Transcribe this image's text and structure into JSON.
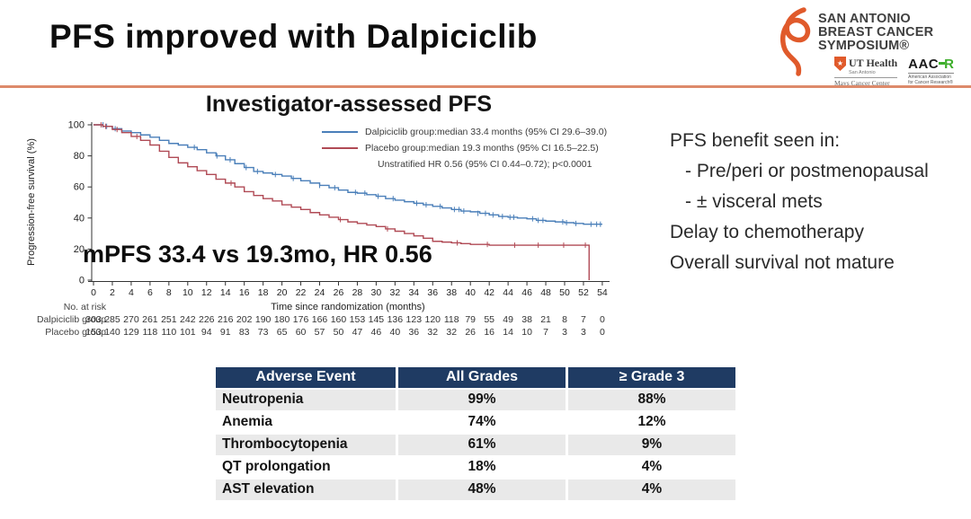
{
  "slide": {
    "title": "PFS improved with Dalpiciclib"
  },
  "logo": {
    "line1": "SAN ANTONIO",
    "line2": "BREAST CANCER",
    "line3": "SYMPOSIUM®",
    "ut_main": "UT Health",
    "ut_sub": "San Antonio",
    "ut_cancer": "Mays Cancer Center",
    "aacr_black": "AAC",
    "aacr_green": "R",
    "aacr_sub1": "American Association",
    "aacr_sub2": "for Cancer Research®",
    "star_icon": "★"
  },
  "right_panel": {
    "lines": [
      "PFS benefit seen in:",
      "- Pre/peri or postmenopausal",
      "- ± visceral mets",
      "Delay to chemotherapy",
      "Overall survival not mature"
    ]
  },
  "chart_data": {
    "type": "line",
    "subtype": "kaplan-meier",
    "title": "Investigator-assessed PFS",
    "xlabel": "Time since randomization (months)",
    "ylabel": "Progression-free survival (%)",
    "xlim": [
      0,
      54
    ],
    "ylim": [
      0,
      100
    ],
    "xticks": [
      0,
      2,
      4,
      6,
      8,
      10,
      12,
      14,
      16,
      18,
      20,
      22,
      24,
      26,
      28,
      30,
      32,
      34,
      36,
      38,
      40,
      42,
      44,
      46,
      48,
      50,
      52,
      54
    ],
    "yticks": [
      0,
      20,
      40,
      60,
      80,
      100
    ],
    "grid": false,
    "legend_position": "top-right-inside",
    "annotation": "mPFS 33.4 vs 19.3mo, HR 0.56",
    "note": "Unstratified HR 0.56 (95% CI 0.44–0.72); p<0.0001",
    "legend": [
      {
        "label": "Dalpiciclib group:median 33.4 months (95% CI 29.6–39.0)",
        "color": "#4a7fb9"
      },
      {
        "label": "Placebo group:median 19.3 months (95% CI 16.5–22.5)",
        "color": "#b04a55"
      }
    ],
    "series": [
      {
        "name": "Dalpiciclib group",
        "color": "#4a7fb9",
        "points": [
          [
            0,
            100
          ],
          [
            1,
            99
          ],
          [
            2,
            97.5
          ],
          [
            3,
            96
          ],
          [
            4,
            95
          ],
          [
            5,
            93.5
          ],
          [
            6,
            92
          ],
          [
            7,
            90
          ],
          [
            8,
            88
          ],
          [
            9,
            87
          ],
          [
            10,
            85.5
          ],
          [
            11,
            84
          ],
          [
            12,
            82
          ],
          [
            13,
            80
          ],
          [
            14,
            77.5
          ],
          [
            15,
            75
          ],
          [
            16,
            72.5
          ],
          [
            17,
            70
          ],
          [
            18,
            69
          ],
          [
            19,
            68
          ],
          [
            20,
            67
          ],
          [
            21,
            65.5
          ],
          [
            22,
            64
          ],
          [
            23,
            62.5
          ],
          [
            24,
            61
          ],
          [
            25,
            59.5
          ],
          [
            26,
            58
          ],
          [
            27,
            56.5
          ],
          [
            28,
            56
          ],
          [
            29,
            55
          ],
          [
            30,
            54
          ],
          [
            31,
            52.5
          ],
          [
            32,
            51.5
          ],
          [
            33,
            50.5
          ],
          [
            34,
            49.5
          ],
          [
            35,
            48.5
          ],
          [
            36,
            47.5
          ],
          [
            37,
            46.5
          ],
          [
            38,
            45.5
          ],
          [
            39,
            44.5
          ],
          [
            40,
            44
          ],
          [
            41,
            43
          ],
          [
            42,
            42
          ],
          [
            43,
            41
          ],
          [
            44,
            40.5
          ],
          [
            45,
            40
          ],
          [
            46,
            39.5
          ],
          [
            47,
            38.5
          ],
          [
            48,
            38
          ],
          [
            49,
            37.5
          ],
          [
            50,
            37
          ],
          [
            51,
            36.5
          ],
          [
            52,
            36
          ],
          [
            54,
            36
          ]
        ],
        "censors": [
          [
            1.0,
            100
          ],
          [
            1.4,
            99
          ],
          [
            2.3,
            97.5
          ],
          [
            10.7,
            85.5
          ],
          [
            13.1,
            80
          ],
          [
            14.5,
            77.5
          ],
          [
            16.2,
            72.5
          ],
          [
            17.4,
            70
          ],
          [
            19.3,
            68
          ],
          [
            21.2,
            65.5
          ],
          [
            24,
            61
          ],
          [
            25.6,
            59.5
          ],
          [
            27.8,
            56.5
          ],
          [
            28.8,
            56
          ],
          [
            30.2,
            54
          ],
          [
            31.8,
            52.5
          ],
          [
            34.3,
            49.5
          ],
          [
            35.3,
            48.5
          ],
          [
            36.8,
            47.5
          ],
          [
            38.3,
            45.5
          ],
          [
            38.8,
            45.5
          ],
          [
            39.3,
            44.5
          ],
          [
            40.8,
            43
          ],
          [
            41.6,
            43
          ],
          [
            42.4,
            42
          ],
          [
            43.4,
            41
          ],
          [
            44.2,
            40.5
          ],
          [
            44.6,
            40.5
          ],
          [
            46.6,
            39.5
          ],
          [
            47.2,
            38.5
          ],
          [
            47.7,
            38.5
          ],
          [
            49.8,
            37.5
          ],
          [
            50.2,
            37
          ],
          [
            51.2,
            36.5
          ],
          [
            52.8,
            36
          ],
          [
            53.4,
            36
          ],
          [
            53.8,
            36
          ]
        ]
      },
      {
        "name": "Placebo group",
        "color": "#b04a55",
        "points": [
          [
            0,
            100
          ],
          [
            1,
            99
          ],
          [
            2,
            97
          ],
          [
            3,
            95
          ],
          [
            4,
            92.5
          ],
          [
            5,
            90
          ],
          [
            6,
            87
          ],
          [
            7,
            83
          ],
          [
            8,
            79
          ],
          [
            9,
            75.5
          ],
          [
            10,
            73
          ],
          [
            11,
            70.5
          ],
          [
            12,
            68
          ],
          [
            13,
            65
          ],
          [
            14,
            62.5
          ],
          [
            15,
            60
          ],
          [
            16,
            57
          ],
          [
            17,
            54.5
          ],
          [
            18,
            52.5
          ],
          [
            19,
            51
          ],
          [
            20,
            48.5
          ],
          [
            21,
            47
          ],
          [
            22,
            45.5
          ],
          [
            23,
            43.5
          ],
          [
            24,
            42
          ],
          [
            25,
            40.5
          ],
          [
            26,
            39
          ],
          [
            27,
            37.5
          ],
          [
            28,
            36.5
          ],
          [
            29,
            35.5
          ],
          [
            30,
            34.5
          ],
          [
            31,
            33
          ],
          [
            32,
            31.5
          ],
          [
            33,
            30
          ],
          [
            34,
            28.5
          ],
          [
            35,
            27
          ],
          [
            36,
            25
          ],
          [
            37,
            24.5
          ],
          [
            38,
            24
          ],
          [
            39,
            23.5
          ],
          [
            40,
            23
          ],
          [
            41,
            23
          ],
          [
            42,
            22.5
          ],
          [
            52.6,
            22.5
          ],
          [
            52.6,
            0
          ]
        ],
        "censors": [
          [
            0.8,
            100
          ],
          [
            1.3,
            99
          ],
          [
            2.5,
            97
          ],
          [
            4.6,
            92.5
          ],
          [
            14.6,
            62.5
          ],
          [
            26.2,
            39
          ],
          [
            31.2,
            33
          ],
          [
            38.6,
            24
          ],
          [
            41.8,
            23
          ],
          [
            44.7,
            22.5
          ],
          [
            47.2,
            22.5
          ],
          [
            49.9,
            22.5
          ],
          [
            52.2,
            22.5
          ]
        ]
      }
    ],
    "risk_table": {
      "label": "No. at risk",
      "months": [
        0,
        2,
        4,
        6,
        8,
        10,
        12,
        14,
        16,
        18,
        20,
        22,
        24,
        26,
        28,
        30,
        32,
        34,
        36,
        38,
        40,
        42,
        44,
        46,
        48,
        50,
        52,
        54
      ],
      "rows": [
        {
          "name": "Dalpiciclib group",
          "values": [
            303,
            285,
            270,
            261,
            251,
            242,
            226,
            216,
            202,
            190,
            180,
            176,
            166,
            160,
            153,
            145,
            136,
            123,
            120,
            118,
            79,
            55,
            49,
            38,
            21,
            8,
            7,
            0
          ]
        },
        {
          "name": "Placebo group",
          "values": [
            153,
            140,
            129,
            118,
            110,
            101,
            94,
            91,
            83,
            73,
            65,
            60,
            57,
            50,
            47,
            46,
            40,
            36,
            32,
            32,
            26,
            16,
            14,
            10,
            7,
            3,
            3,
            0
          ]
        }
      ]
    }
  },
  "ae_table": {
    "headers": [
      "Adverse Event",
      "All Grades",
      "≥ Grade 3"
    ],
    "rows": [
      [
        "Neutropenia",
        "99%",
        "88%"
      ],
      [
        "Anemia",
        "74%",
        "12%"
      ],
      [
        "Thrombocytopenia",
        "61%",
        "9%"
      ],
      [
        "QT prolongation",
        "18%",
        "4%"
      ],
      [
        "AST elevation",
        "48%",
        "4%"
      ]
    ]
  },
  "colors": {
    "accent_divider": "#dd8a6b",
    "table_header_navy": "#1f3b63",
    "row_stripe": "#e9e9e9",
    "dalpiciclib_blue": "#4a7fb9",
    "placebo_red": "#b04a55",
    "sabcs_orange": "#e05a2b",
    "aacr_green": "#3dae2b"
  }
}
